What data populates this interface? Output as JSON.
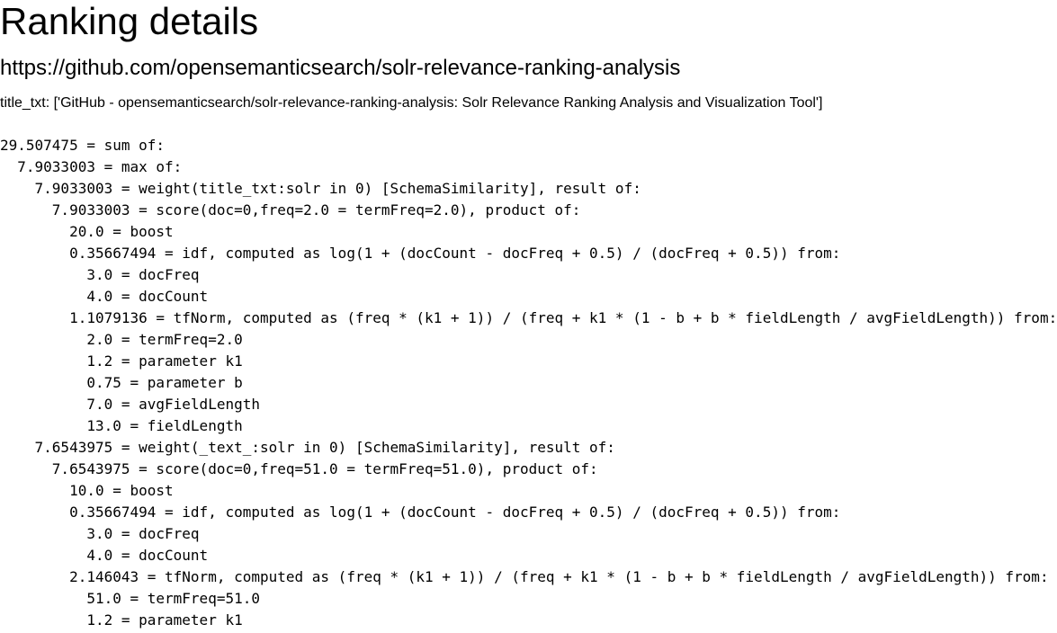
{
  "page": {
    "title": "Ranking details",
    "url": "https://github.com/opensemanticsearch/solr-relevance-ranking-analysis",
    "title_field": "title_txt: ['GitHub - opensemanticsearch/solr-relevance-ranking-analysis: Solr Relevance Ranking Analysis and Visualization Tool']"
  },
  "explain": {
    "lines": [
      "29.507475 = sum of:",
      "  7.9033003 = max of:",
      "    7.9033003 = weight(title_txt:solr in 0) [SchemaSimilarity], result of:",
      "      7.9033003 = score(doc=0,freq=2.0 = termFreq=2.0), product of:",
      "        20.0 = boost",
      "        0.35667494 = idf, computed as log(1 + (docCount - docFreq + 0.5) / (docFreq + 0.5)) from:",
      "          3.0 = docFreq",
      "          4.0 = docCount",
      "        1.1079136 = tfNorm, computed as (freq * (k1 + 1)) / (freq + k1 * (1 - b + b * fieldLength / avgFieldLength)) from:",
      "          2.0 = termFreq=2.0",
      "          1.2 = parameter k1",
      "          0.75 = parameter b",
      "          7.0 = avgFieldLength",
      "          13.0 = fieldLength",
      "    7.6543975 = weight(_text_:solr in 0) [SchemaSimilarity], result of:",
      "      7.6543975 = score(doc=0,freq=51.0 = termFreq=51.0), product of:",
      "        10.0 = boost",
      "        0.35667494 = idf, computed as log(1 + (docCount - docFreq + 0.5) / (docFreq + 0.5)) from:",
      "          3.0 = docFreq",
      "          4.0 = docCount",
      "        2.146043 = tfNorm, computed as (freq * (k1 + 1)) / (freq + k1 * (1 - b + b * fieldLength / avgFieldLength)) from:",
      "          51.0 = termFreq=51.0",
      "          1.2 = parameter k1"
    ]
  }
}
